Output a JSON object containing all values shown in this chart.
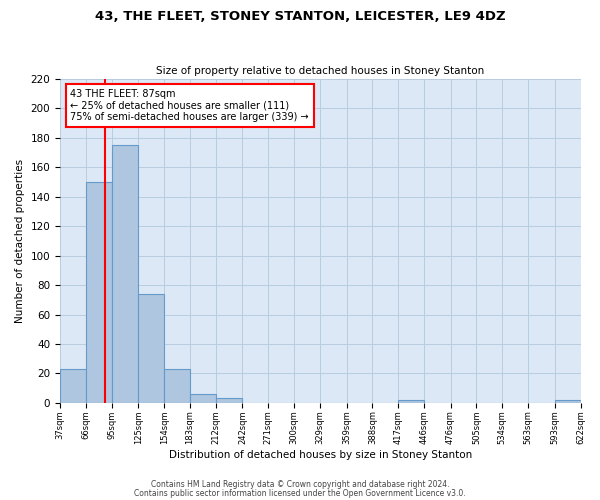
{
  "title": "43, THE FLEET, STONEY STANTON, LEICESTER, LE9 4DZ",
  "subtitle": "Size of property relative to detached houses in Stoney Stanton",
  "xlabel": "Distribution of detached houses by size in Stoney Stanton",
  "ylabel": "Number of detached properties",
  "footer_line1": "Contains HM Land Registry data © Crown copyright and database right 2024.",
  "footer_line2": "Contains public sector information licensed under the Open Government Licence v3.0.",
  "bin_edges": [
    37,
    66,
    95,
    125,
    154,
    183,
    212,
    242,
    271,
    300,
    329,
    359,
    388,
    417,
    446,
    476,
    505,
    534,
    563,
    593,
    622
  ],
  "bin_labels": [
    "37sqm",
    "66sqm",
    "95sqm",
    "125sqm",
    "154sqm",
    "183sqm",
    "212sqm",
    "242sqm",
    "271sqm",
    "300sqm",
    "329sqm",
    "359sqm",
    "388sqm",
    "417sqm",
    "446sqm",
    "476sqm",
    "505sqm",
    "534sqm",
    "563sqm",
    "593sqm",
    "622sqm"
  ],
  "counts": [
    23,
    150,
    175,
    74,
    23,
    6,
    3,
    0,
    0,
    0,
    0,
    0,
    0,
    2,
    0,
    0,
    0,
    0,
    0,
    2
  ],
  "bar_color": "#aec6df",
  "bar_edge_color": "#6699cc",
  "bg_color": "#dce8f5",
  "grid_color": "#b8cde0",
  "red_line_x": 87,
  "annotation_line1": "43 THE FLEET: 87sqm",
  "annotation_line2": "← 25% of detached houses are smaller (111)",
  "annotation_line3": "75% of semi-detached houses are larger (339) →",
  "ylim": [
    0,
    220
  ],
  "yticks": [
    0,
    20,
    40,
    60,
    80,
    100,
    120,
    140,
    160,
    180,
    200,
    220
  ]
}
